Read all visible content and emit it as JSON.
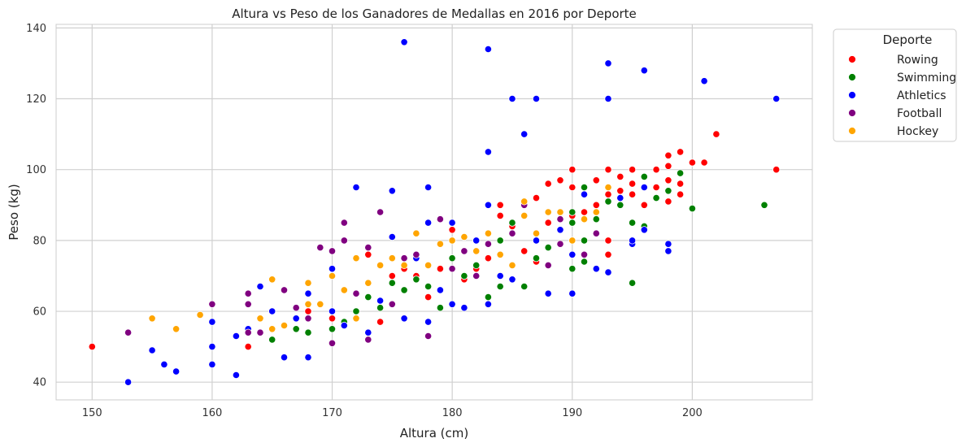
{
  "chart_data": {
    "type": "scatter",
    "title": "Altura vs Peso de los Ganadores de Medallas en 2016 por Deporte",
    "xlabel": "Altura (cm)",
    "ylabel": "Peso (kg)",
    "xlim": [
      147,
      210
    ],
    "ylim": [
      35,
      141
    ],
    "xticks": [
      "150",
      "160",
      "170",
      "180",
      "190",
      "200"
    ],
    "yticks": [
      "40",
      "60",
      "80",
      "100",
      "120",
      "140"
    ],
    "grid": true,
    "legend": {
      "title": "Deporte",
      "position": "outside-top-right"
    },
    "series": [
      {
        "name": "Rowing",
        "color": "#ff0000",
        "points": [
          [
            150,
            50
          ],
          [
            163,
            50
          ],
          [
            165,
            60
          ],
          [
            168,
            60
          ],
          [
            170,
            58
          ],
          [
            172,
            60
          ],
          [
            173,
            76
          ],
          [
            174,
            57
          ],
          [
            175,
            70
          ],
          [
            176,
            72
          ],
          [
            177,
            70
          ],
          [
            178,
            64
          ],
          [
            179,
            72
          ],
          [
            180,
            83
          ],
          [
            181,
            69
          ],
          [
            182,
            72
          ],
          [
            183,
            75
          ],
          [
            184,
            87
          ],
          [
            184,
            90
          ],
          [
            185,
            84
          ],
          [
            186,
            77
          ],
          [
            187,
            74
          ],
          [
            187,
            92
          ],
          [
            188,
            85
          ],
          [
            188,
            96
          ],
          [
            189,
            97
          ],
          [
            190,
            95
          ],
          [
            190,
            100
          ],
          [
            190,
            87
          ],
          [
            191,
            88
          ],
          [
            191,
            95
          ],
          [
            192,
            90
          ],
          [
            192,
            97
          ],
          [
            193,
            80
          ],
          [
            193,
            76
          ],
          [
            193,
            93
          ],
          [
            193,
            100
          ],
          [
            194,
            94
          ],
          [
            194,
            98
          ],
          [
            195,
            93
          ],
          [
            195,
            96
          ],
          [
            195,
            100
          ],
          [
            196,
            90
          ],
          [
            196,
            95
          ],
          [
            197,
            95
          ],
          [
            197,
            100
          ],
          [
            198,
            91
          ],
          [
            198,
            97
          ],
          [
            198,
            101
          ],
          [
            198,
            104
          ],
          [
            199,
            93
          ],
          [
            199,
            96
          ],
          [
            199,
            105
          ],
          [
            200,
            102
          ],
          [
            201,
            102
          ],
          [
            202,
            110
          ],
          [
            207,
            100
          ]
        ]
      },
      {
        "name": "Swimming",
        "color": "#008000",
        "points": [
          [
            165,
            52
          ],
          [
            167,
            55
          ],
          [
            168,
            54
          ],
          [
            170,
            55
          ],
          [
            171,
            57
          ],
          [
            172,
            60
          ],
          [
            173,
            64
          ],
          [
            174,
            61
          ],
          [
            175,
            68
          ],
          [
            176,
            66
          ],
          [
            177,
            69
          ],
          [
            178,
            67
          ],
          [
            179,
            61
          ],
          [
            180,
            75
          ],
          [
            181,
            70
          ],
          [
            182,
            73
          ],
          [
            183,
            64
          ],
          [
            184,
            67
          ],
          [
            184,
            80
          ],
          [
            185,
            85
          ],
          [
            186,
            67
          ],
          [
            187,
            75
          ],
          [
            188,
            78
          ],
          [
            189,
            83
          ],
          [
            190,
            85
          ],
          [
            190,
            88
          ],
          [
            190,
            72
          ],
          [
            191,
            95
          ],
          [
            191,
            80
          ],
          [
            191,
            74
          ],
          [
            192,
            86
          ],
          [
            193,
            91
          ],
          [
            194,
            90
          ],
          [
            195,
            85
          ],
          [
            195,
            68
          ],
          [
            196,
            84
          ],
          [
            196,
            98
          ],
          [
            197,
            92
          ],
          [
            198,
            94
          ],
          [
            199,
            99
          ],
          [
            200,
            89
          ],
          [
            206,
            90
          ]
        ]
      },
      {
        "name": "Athletics",
        "color": "#0000ff",
        "points": [
          [
            153,
            40
          ],
          [
            155,
            49
          ],
          [
            156,
            45
          ],
          [
            157,
            43
          ],
          [
            160,
            50
          ],
          [
            160,
            57
          ],
          [
            160,
            45
          ],
          [
            162,
            42
          ],
          [
            162,
            53
          ],
          [
            163,
            55
          ],
          [
            164,
            67
          ],
          [
            165,
            60
          ],
          [
            166,
            47
          ],
          [
            167,
            58
          ],
          [
            168,
            47
          ],
          [
            168,
            65
          ],
          [
            170,
            60
          ],
          [
            170,
            72
          ],
          [
            171,
            56
          ],
          [
            172,
            95
          ],
          [
            173,
            54
          ],
          [
            174,
            63
          ],
          [
            175,
            94
          ],
          [
            175,
            81
          ],
          [
            176,
            136
          ],
          [
            176,
            58
          ],
          [
            177,
            75
          ],
          [
            178,
            95
          ],
          [
            178,
            85
          ],
          [
            178,
            57
          ],
          [
            179,
            66
          ],
          [
            180,
            85
          ],
          [
            180,
            62
          ],
          [
            181,
            61
          ],
          [
            182,
            80
          ],
          [
            183,
            134
          ],
          [
            183,
            105
          ],
          [
            183,
            62
          ],
          [
            183,
            90
          ],
          [
            184,
            70
          ],
          [
            185,
            120
          ],
          [
            185,
            69
          ],
          [
            186,
            110
          ],
          [
            187,
            120
          ],
          [
            187,
            80
          ],
          [
            188,
            65
          ],
          [
            189,
            83
          ],
          [
            190,
            65
          ],
          [
            190,
            76
          ],
          [
            191,
            93
          ],
          [
            191,
            86
          ],
          [
            192,
            72
          ],
          [
            193,
            130
          ],
          [
            193,
            120
          ],
          [
            193,
            71
          ],
          [
            194,
            92
          ],
          [
            195,
            79
          ],
          [
            195,
            80
          ],
          [
            196,
            128
          ],
          [
            196,
            83
          ],
          [
            196,
            95
          ],
          [
            198,
            79
          ],
          [
            198,
            77
          ],
          [
            201,
            125
          ],
          [
            207,
            120
          ]
        ]
      },
      {
        "name": "Football",
        "color": "#800080",
        "points": [
          [
            153,
            54
          ],
          [
            160,
            62
          ],
          [
            163,
            54
          ],
          [
            163,
            62
          ],
          [
            163,
            65
          ],
          [
            164,
            54
          ],
          [
            166,
            66
          ],
          [
            167,
            61
          ],
          [
            168,
            58
          ],
          [
            169,
            78
          ],
          [
            170,
            77
          ],
          [
            170,
            51
          ],
          [
            171,
            80
          ],
          [
            171,
            85
          ],
          [
            172,
            65
          ],
          [
            173,
            52
          ],
          [
            173,
            78
          ],
          [
            174,
            88
          ],
          [
            175,
            62
          ],
          [
            176,
            75
          ],
          [
            177,
            76
          ],
          [
            178,
            53
          ],
          [
            179,
            86
          ],
          [
            180,
            72
          ],
          [
            181,
            77
          ],
          [
            182,
            70
          ],
          [
            183,
            79
          ],
          [
            185,
            82
          ],
          [
            186,
            90
          ],
          [
            188,
            73
          ],
          [
            189,
            79
          ],
          [
            189,
            86
          ],
          [
            191,
            76
          ],
          [
            192,
            82
          ]
        ]
      },
      {
        "name": "Hockey",
        "color": "#ffa500",
        "points": [
          [
            155,
            58
          ],
          [
            157,
            55
          ],
          [
            159,
            59
          ],
          [
            164,
            58
          ],
          [
            165,
            69
          ],
          [
            165,
            55
          ],
          [
            166,
            56
          ],
          [
            168,
            62
          ],
          [
            168,
            68
          ],
          [
            169,
            62
          ],
          [
            170,
            70
          ],
          [
            171,
            66
          ],
          [
            172,
            75
          ],
          [
            172,
            58
          ],
          [
            173,
            68
          ],
          [
            174,
            73
          ],
          [
            175,
            75
          ],
          [
            176,
            73
          ],
          [
            177,
            82
          ],
          [
            178,
            73
          ],
          [
            179,
            79
          ],
          [
            180,
            80
          ],
          [
            181,
            81
          ],
          [
            182,
            77
          ],
          [
            183,
            82
          ],
          [
            184,
            76
          ],
          [
            185,
            73
          ],
          [
            186,
            87
          ],
          [
            186,
            91
          ],
          [
            187,
            82
          ],
          [
            188,
            88
          ],
          [
            189,
            88
          ],
          [
            190,
            80
          ],
          [
            191,
            86
          ],
          [
            192,
            88
          ],
          [
            193,
            95
          ]
        ]
      }
    ]
  }
}
